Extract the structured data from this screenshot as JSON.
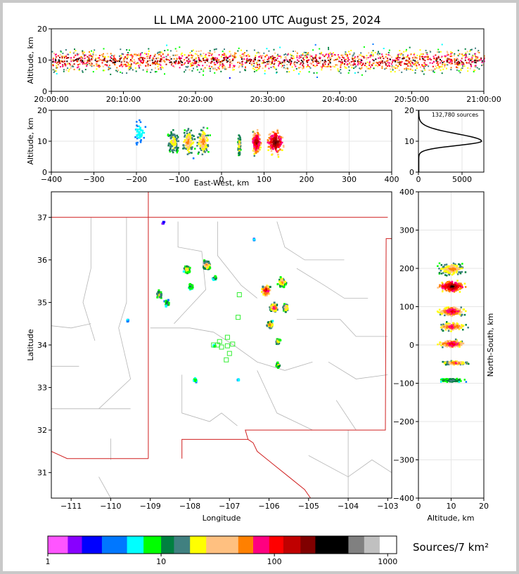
{
  "title": "LL LMA 2000-2100 UTC August 25, 2024",
  "panels": {
    "time_height": {
      "ylabel": "Altitude, km",
      "yticks": [
        "0",
        "10",
        "20"
      ],
      "xticks": [
        "20:00:00",
        "20:10:00",
        "20:20:00",
        "20:30:00",
        "20:40:00",
        "20:50:00",
        "21:00:00"
      ]
    },
    "ew_height": {
      "ylabel": "Altitude, km",
      "xlabel": "East-West, km",
      "yticks": [
        "0",
        "10",
        "20"
      ],
      "xticks": [
        "−400",
        "−300",
        "−200",
        "−100",
        "0",
        "100",
        "200",
        "300",
        "400"
      ]
    },
    "histogram": {
      "annotation": "132,780 sources",
      "yticks": [
        "0",
        "10",
        "20"
      ],
      "xticks": [
        "0",
        "5000"
      ]
    },
    "plan": {
      "xlabel": "Longitude",
      "ylabel": "Latitude",
      "xticks": [
        "−111",
        "−110",
        "−109",
        "−108",
        "−107",
        "−106",
        "−105",
        "−104",
        "−103"
      ],
      "yticks": [
        "37",
        "36",
        "35",
        "34",
        "33",
        "32",
        "31"
      ]
    },
    "ns_height": {
      "xlabel": "Altitude, km",
      "ylabel": "North-South, km",
      "xticks": [
        "0",
        "10",
        "20"
      ],
      "yticks": [
        "400",
        "300",
        "200",
        "100",
        "0",
        "−100",
        "−200",
        "−300",
        "−400"
      ]
    }
  },
  "colorbar": {
    "label": "Sources/7 km²",
    "ticks": [
      "1",
      "10",
      "100",
      "1000"
    ],
    "colors": [
      "#ff55ff",
      "#8800ff",
      "#0000ff",
      "#0077ff",
      "#00ffff",
      "#00ff00",
      "#008040",
      "#408080",
      "#ffff00",
      "#ffc080",
      "#ff8000",
      "#ff0080",
      "#ff0000",
      "#c00000",
      "#800000",
      "#000000",
      "#808080",
      "#c0c0c0",
      "#ffffff"
    ]
  },
  "chart_data": [
    {
      "type": "heatmap",
      "name": "time-altitude",
      "x_range": [
        "20:00:00",
        "21:00:00"
      ],
      "ylim": [
        0,
        20
      ],
      "ylabel": "Altitude, km",
      "core_altitude_km": 10
    },
    {
      "type": "heatmap",
      "name": "east-west-altitude",
      "xlim": [
        -400,
        400
      ],
      "ylim": [
        0,
        20
      ],
      "xlabel": "East-West, km",
      "ylabel": "Altitude, km",
      "clusters_km": [
        {
          "x": -195,
          "x_span": 40,
          "z": 13,
          "density": 0.3
        },
        {
          "x": -115,
          "x_span": 35,
          "z": 10,
          "density": 0.6
        },
        {
          "x": -80,
          "x_span": 30,
          "z": 10,
          "density": 0.7
        },
        {
          "x": -45,
          "x_span": 35,
          "z": 10,
          "density": 0.7
        },
        {
          "x": 40,
          "x_span": 8,
          "z": 9,
          "density": 0.6
        },
        {
          "x": 80,
          "x_span": 25,
          "z": 10,
          "density": 0.95
        },
        {
          "x": 125,
          "x_span": 45,
          "z": 10,
          "density": 1.0
        }
      ]
    },
    {
      "type": "line",
      "name": "altitude-histogram",
      "total_sources": 132780,
      "xlim": [
        0,
        7500
      ],
      "ylim": [
        0,
        20
      ],
      "peak": {
        "altitude_km": 10,
        "count": 7200
      }
    },
    {
      "type": "heatmap",
      "name": "plan-view",
      "xlim": [
        -111.5,
        -102.9
      ],
      "ylim": [
        30.4,
        37.6
      ],
      "xlabel": "Longitude",
      "ylabel": "Latitude",
      "cells": [
        {
          "lon": -108.8,
          "lat": 35.2,
          "size": 0.25,
          "density": 0.6
        },
        {
          "lon": -108.6,
          "lat": 35.0,
          "size": 0.2,
          "density": 0.5
        },
        {
          "lon": -108.1,
          "lat": 35.8,
          "size": 0.25,
          "density": 0.6
        },
        {
          "lon": -108.0,
          "lat": 35.4,
          "size": 0.2,
          "density": 0.5
        },
        {
          "lon": -107.6,
          "lat": 35.9,
          "size": 0.3,
          "density": 0.7
        },
        {
          "lon": -107.4,
          "lat": 35.6,
          "size": 0.15,
          "density": 0.5
        },
        {
          "lon": -106.1,
          "lat": 35.3,
          "size": 0.35,
          "density": 0.9
        },
        {
          "lon": -105.7,
          "lat": 35.5,
          "size": 0.3,
          "density": 0.7
        },
        {
          "lon": -105.9,
          "lat": 34.9,
          "size": 0.3,
          "density": 0.8
        },
        {
          "lon": -105.6,
          "lat": 34.9,
          "size": 0.25,
          "density": 0.7
        },
        {
          "lon": -106.0,
          "lat": 34.5,
          "size": 0.25,
          "density": 0.7
        },
        {
          "lon": -105.8,
          "lat": 34.1,
          "size": 0.2,
          "density": 0.6
        },
        {
          "lon": -105.8,
          "lat": 33.55,
          "size": 0.15,
          "density": 0.6
        },
        {
          "lon": -107.9,
          "lat": 33.2,
          "size": 0.15,
          "density": 0.4
        },
        {
          "lon": -107.4,
          "lat": 34.0,
          "size": 0.1,
          "density": 0.4
        },
        {
          "lon": -109.6,
          "lat": 34.6,
          "size": 0.08,
          "density": 0.3
        },
        {
          "lon": -106.8,
          "lat": 33.2,
          "size": 0.08,
          "density": 0.3
        },
        {
          "lon": -106.4,
          "lat": 36.5,
          "size": 0.05,
          "density": 0.3
        },
        {
          "lon": -108.7,
          "lat": 36.9,
          "size": 0.08,
          "density": 0.2
        }
      ],
      "stations": [
        {
          "lon": -106.75,
          "lat": 35.18
        },
        {
          "lon": -106.78,
          "lat": 34.65
        },
        {
          "lon": -107.05,
          "lat": 34.18
        },
        {
          "lon": -107.05,
          "lat": 33.98
        },
        {
          "lon": -107.25,
          "lat": 34.08
        },
        {
          "lon": -107.3,
          "lat": 34.0
        },
        {
          "lon": -107.2,
          "lat": 33.95
        },
        {
          "lon": -106.92,
          "lat": 34.02
        },
        {
          "lon": -107.0,
          "lat": 33.8
        },
        {
          "lon": -107.08,
          "lat": 33.65
        },
        {
          "lon": -107.4,
          "lat": 34.0
        }
      ]
    },
    {
      "type": "heatmap",
      "name": "altitude-north-south",
      "xlim": [
        0,
        20
      ],
      "ylim": [
        -400,
        400
      ],
      "xlabel": "Altitude, km",
      "ylabel": "North-South, km",
      "clusters_km": [
        {
          "y": 200,
          "y_span": 40,
          "z": 10,
          "density": 0.7
        },
        {
          "y": 155,
          "y_span": 35,
          "z": 10,
          "density": 1.0
        },
        {
          "y": 90,
          "y_span": 30,
          "z": 10,
          "density": 0.85
        },
        {
          "y": 50,
          "y_span": 25,
          "z": 10,
          "density": 0.8
        },
        {
          "y": 5,
          "y_span": 25,
          "z": 10,
          "density": 0.85
        },
        {
          "y": -45,
          "y_span": 12,
          "z": 11,
          "density": 0.75
        },
        {
          "y": -90,
          "y_span": 12,
          "z": 10,
          "density": 0.5
        }
      ]
    }
  ]
}
